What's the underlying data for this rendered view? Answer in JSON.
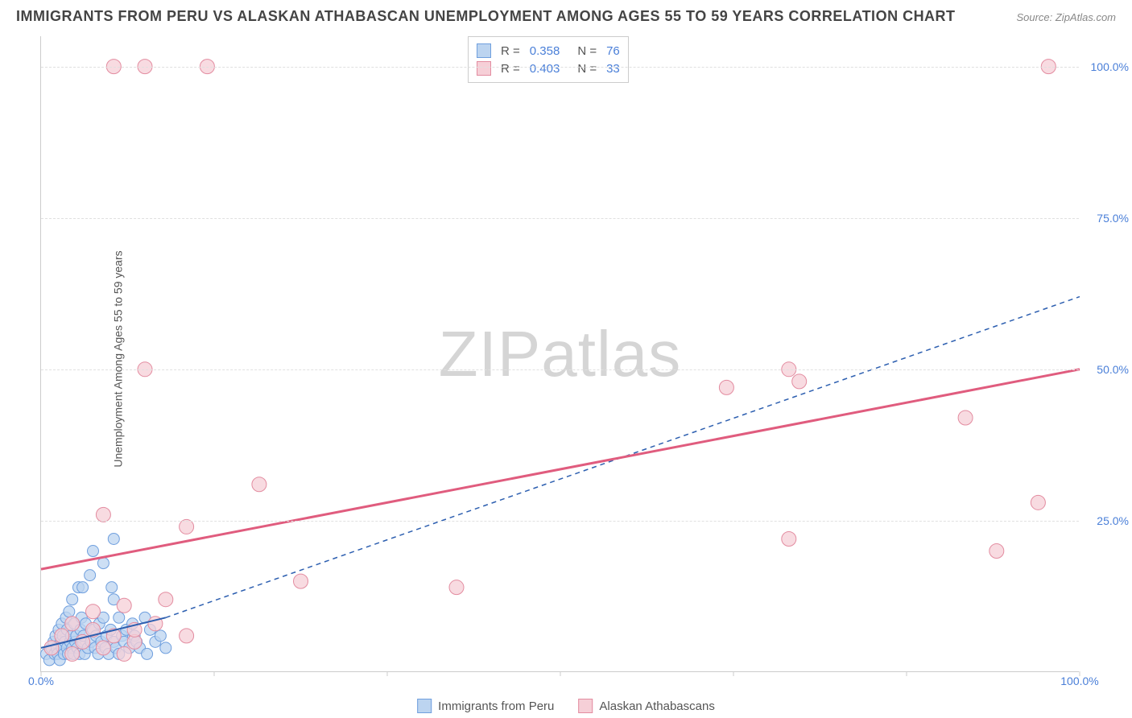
{
  "title": "IMMIGRANTS FROM PERU VS ALASKAN ATHABASCAN UNEMPLOYMENT AMONG AGES 55 TO 59 YEARS CORRELATION CHART",
  "source": "Source: ZipAtlas.com",
  "yaxis_label": "Unemployment Among Ages 55 to 59 years",
  "watermark": "ZIPatlas",
  "chart": {
    "type": "scatter",
    "background_color": "#ffffff",
    "grid_color": "#e0e0e0",
    "axis_color": "#cccccc",
    "tick_label_color": "#4a7fd8",
    "tick_fontsize": 14,
    "title_fontsize": 18,
    "title_color": "#444444",
    "xlim": [
      0,
      100
    ],
    "ylim": [
      0,
      105
    ],
    "ytick_values": [
      25,
      50,
      75,
      100
    ],
    "ytick_labels": [
      "25.0%",
      "50.0%",
      "75.0%",
      "100.0%"
    ],
    "xtick_values": [
      0,
      100
    ],
    "xtick_labels": [
      "0.0%",
      "100.0%"
    ],
    "xtick_mark_positions": [
      0,
      16.7,
      33.3,
      50,
      66.7,
      83.3,
      100
    ],
    "legend_top": [
      {
        "swatch_fill": "#bcd4f0",
        "swatch_border": "#6f9fde",
        "R": "0.358",
        "N": "76"
      },
      {
        "swatch_fill": "#f6cfd7",
        "swatch_border": "#e38ca0",
        "R": "0.403",
        "N": "33"
      }
    ],
    "legend_bottom": [
      {
        "swatch_fill": "#bcd4f0",
        "swatch_border": "#6f9fde",
        "label": "Immigrants from Peru"
      },
      {
        "swatch_fill": "#f6cfd7",
        "swatch_border": "#e38ca0",
        "label": "Alaskan Athabascans"
      }
    ],
    "series": [
      {
        "name": "Immigrants from Peru",
        "marker_fill": "#bcd4f0",
        "marker_border": "#6f9fde",
        "marker_opacity": 0.75,
        "marker_radius": 7,
        "trend_color": "#2d5fb0",
        "trend_solid_x": [
          0,
          12
        ],
        "trend_solid_y": [
          4,
          9
        ],
        "trend_dashed_x": [
          12,
          100
        ],
        "trend_dashed_y": [
          9,
          62
        ],
        "trend_width": 2,
        "points_x": [
          0.5,
          0.8,
          1.0,
          1.2,
          1.3,
          1.4,
          1.5,
          1.6,
          1.7,
          1.8,
          1.9,
          2.0,
          2.0,
          2.1,
          2.2,
          2.3,
          2.4,
          2.5,
          2.5,
          2.6,
          2.7,
          2.8,
          2.9,
          3.0,
          3.0,
          3.1,
          3.2,
          3.3,
          3.4,
          3.5,
          3.6,
          3.7,
          3.8,
          3.9,
          4.0,
          4.1,
          4.2,
          4.3,
          4.5,
          4.7,
          4.8,
          5.0,
          5.0,
          5.2,
          5.3,
          5.5,
          5.6,
          5.8,
          6.0,
          6.0,
          6.2,
          6.3,
          6.5,
          6.7,
          6.8,
          7.0,
          7.0,
          7.2,
          7.5,
          7.5,
          7.8,
          8.0,
          8.2,
          8.5,
          8.8,
          9.0,
          9.2,
          9.5,
          10.0,
          10.2,
          10.5,
          11.0,
          11.5,
          12.0,
          7.0,
          4.0
        ],
        "points_y": [
          3,
          2,
          4,
          5,
          3,
          6,
          4,
          3,
          7,
          2,
          5,
          4,
          8,
          6,
          3,
          5,
          9,
          4,
          7,
          3,
          10,
          5,
          6,
          4,
          12,
          3,
          8,
          5,
          6,
          4,
          14,
          3,
          7,
          9,
          5,
          6,
          3,
          8,
          4,
          16,
          5,
          7,
          20,
          4,
          6,
          3,
          8,
          5,
          9,
          18,
          4,
          6,
          3,
          7,
          14,
          5,
          22,
          4,
          9,
          3,
          6,
          5,
          7,
          4,
          8,
          6,
          5,
          4,
          9,
          3,
          7,
          5,
          6,
          4,
          12,
          14
        ]
      },
      {
        "name": "Alaskan Athabascans",
        "marker_fill": "#f6cfd7",
        "marker_border": "#e38ca0",
        "marker_opacity": 0.75,
        "marker_radius": 9,
        "trend_color": "#e05c7e",
        "trend_solid_x": [
          0,
          100
        ],
        "trend_solid_y": [
          17,
          50
        ],
        "trend_width": 3,
        "points_x": [
          1,
          2,
          3,
          3,
          4,
          5,
          5,
          6,
          6,
          7,
          8,
          8,
          9,
          9,
          10,
          10,
          11,
          12,
          14,
          14,
          21,
          25,
          7,
          16,
          40,
          66,
          72,
          72,
          73,
          92,
          89,
          96,
          97
        ],
        "points_y": [
          4,
          6,
          3,
          8,
          5,
          7,
          10,
          4,
          26,
          6,
          11,
          3,
          5,
          7,
          100,
          50,
          8,
          12,
          24,
          6,
          31,
          15,
          100,
          100,
          14,
          47,
          50,
          22,
          48,
          20,
          42,
          28,
          100
        ]
      }
    ]
  }
}
